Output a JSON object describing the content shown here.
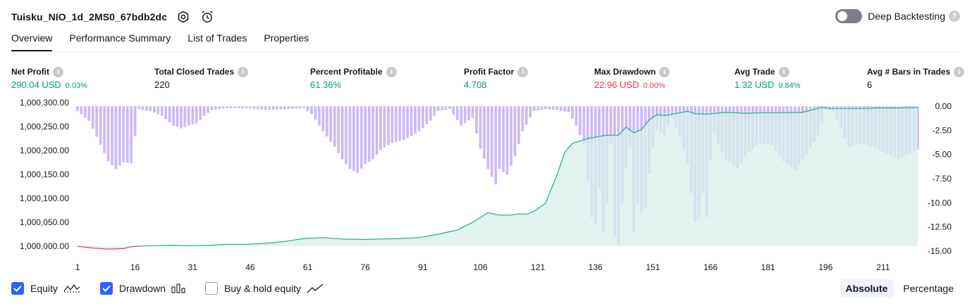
{
  "header": {
    "title": "Tuisku_NIO_1d_2MS0_67bdb2dc"
  },
  "deep_backtesting": {
    "label": "Deep Backtesting",
    "enabled": false
  },
  "tabs": [
    {
      "label": "Overview",
      "active": true
    },
    {
      "label": "Performance Summary",
      "active": false
    },
    {
      "label": "List of Trades",
      "active": false
    },
    {
      "label": "Properties",
      "active": false
    }
  ],
  "metrics": {
    "net_profit": {
      "label": "Net Profit",
      "value": "290.04 USD",
      "pct": "0.03%"
    },
    "total_closed_trades": {
      "label": "Total Closed Trades",
      "value": "220"
    },
    "percent_profitable": {
      "label": "Percent Profitable",
      "value": "61.36%"
    },
    "profit_factor": {
      "label": "Profit Factor",
      "value": "4.708"
    },
    "max_drawdown": {
      "label": "Max Drawdown",
      "value": "22.96 USD",
      "pct": "0.00%"
    },
    "avg_trade": {
      "label": "Avg Trade",
      "value": "1.32 USD",
      "pct": "9.84%"
    },
    "avg_bars": {
      "label": "Avg # Bars in Trades",
      "value": "6"
    }
  },
  "colors": {
    "profit_green": "#089981",
    "loss_red": "#f23645",
    "drawdown_bar": "#c9b2f5",
    "equity_line": "#22ab94",
    "equity_fill": "#d7eee9",
    "accent_blue": "#2962ff"
  },
  "chart_data": {
    "type": "line",
    "left_axis": {
      "ticks": [
        "1,000,300.00",
        "1,000,250.00",
        "1,000,200.00",
        "1,000,150.00",
        "1,000,100.00",
        "1,000,050.00",
        "1,000,000.00"
      ],
      "ylim": [
        1000000,
        1000300
      ]
    },
    "right_axis": {
      "ticks": [
        "0.00",
        "-2.50",
        "-5.00",
        "-7.50",
        "-10.00",
        "-12.50",
        "-15.00"
      ],
      "ylim": [
        -15,
        0
      ]
    },
    "x_ticks": [
      "1",
      "16",
      "31",
      "46",
      "61",
      "76",
      "91",
      "106",
      "121",
      "136",
      "151",
      "166",
      "181",
      "196",
      "211"
    ],
    "x_range": [
      1,
      220
    ],
    "equity": {
      "x": [
        1,
        5,
        9,
        13,
        15,
        17,
        20,
        25,
        30,
        36,
        40,
        45,
        50,
        55,
        60,
        65,
        70,
        75,
        80,
        85,
        90,
        95,
        100,
        104,
        108,
        111,
        114,
        116,
        118,
        120,
        123,
        126,
        128,
        130,
        132,
        134,
        136,
        138,
        140,
        142,
        144,
        146,
        148,
        150,
        152,
        154,
        156,
        158,
        160,
        162,
        165,
        170,
        175,
        180,
        185,
        190,
        195,
        197,
        200,
        205,
        210,
        215,
        220
      ],
      "y": [
        1000000,
        999996,
        999994,
        999995,
        999999,
        1000000,
        1000001,
        1000002,
        1000001,
        1000002,
        1000004,
        1000004,
        1000006,
        1000010,
        1000016,
        1000018,
        1000015,
        1000014,
        1000015,
        1000016,
        1000018,
        1000025,
        1000034,
        1000050,
        1000070,
        1000065,
        1000065,
        1000068,
        1000067,
        1000073,
        1000090,
        1000150,
        1000197,
        1000215,
        1000220,
        1000225,
        1000228,
        1000231,
        1000232,
        1000232,
        1000249,
        1000237,
        1000244,
        1000264,
        1000275,
        1000273,
        1000276,
        1000279,
        1000282,
        1000277,
        1000276,
        1000280,
        1000278,
        1000279,
        1000279,
        1000280,
        1000290,
        1000288,
        1000288,
        1000288,
        1000289,
        1000289,
        1000290
      ]
    },
    "drawdown": {
      "x": [
        1,
        4,
        7,
        9,
        11,
        13,
        15,
        17,
        20,
        23,
        26,
        28,
        30,
        32,
        34,
        36,
        40,
        45,
        50,
        55,
        60,
        62,
        65,
        68,
        70,
        72,
        74,
        76,
        78,
        80,
        83,
        86,
        90,
        93,
        95,
        98,
        101,
        104,
        106,
        108,
        110,
        111,
        113,
        115,
        117,
        120,
        123,
        126,
        129,
        131,
        133,
        135,
        136,
        137,
        138,
        139,
        140,
        141,
        142,
        143,
        144,
        145,
        146,
        147,
        148,
        149,
        150,
        151,
        152,
        154,
        156,
        158,
        160,
        162,
        163,
        164,
        165,
        166,
        167,
        168,
        170,
        173,
        176,
        179,
        182,
        185,
        188,
        191,
        194,
        196,
        198,
        202,
        206,
        210,
        215,
        220
      ],
      "y": [
        -0.5,
        -1.5,
        -4.0,
        -5.7,
        -6.5,
        -5.8,
        -5.9,
        -0.3,
        -0.5,
        -1.0,
        -2.0,
        -2.3,
        -2.0,
        -1.8,
        -1.0,
        -0.4,
        -0.2,
        -0.2,
        -0.4,
        -0.3,
        -0.2,
        -0.8,
        -2.6,
        -4.2,
        -5.5,
        -6.5,
        -6.9,
        -6.0,
        -5.5,
        -4.5,
        -3.8,
        -3.5,
        -2.6,
        -1.5,
        -0.5,
        -0.3,
        -2.0,
        -1.2,
        -4.4,
        -6.5,
        -8.1,
        -6.5,
        -7.1,
        -5.2,
        -2.6,
        -0.5,
        -0.3,
        -0.4,
        -0.6,
        -2.0,
        -4.0,
        -11.5,
        -12.2,
        -8.5,
        -13.0,
        -10.0,
        -4.0,
        -13.5,
        -14.4,
        -10.0,
        -6.5,
        -4.2,
        -13.0,
        -10.0,
        -11.0,
        -10.5,
        -7.0,
        -4.2,
        -2.5,
        -3.0,
        -1.2,
        -3.2,
        -6.0,
        -12.0,
        -11.5,
        -9.0,
        -11.5,
        -5.5,
        -2.8,
        -4.0,
        -5.5,
        -6.4,
        -4.7,
        -3.8,
        -4.0,
        -5.7,
        -6.6,
        -5.0,
        -3.0,
        -0.4,
        -0.5,
        -4.2,
        -3.8,
        -4.5,
        -5.5,
        -4.5
      ]
    }
  },
  "legend": {
    "equity": {
      "label": "Equity",
      "checked": true
    },
    "drawdown": {
      "label": "Drawdown",
      "checked": true
    },
    "buy_hold": {
      "label": "Buy & hold equity",
      "checked": false
    }
  },
  "mode": {
    "absolute": "Absolute",
    "percentage": "Percentage",
    "selected": "absolute"
  }
}
